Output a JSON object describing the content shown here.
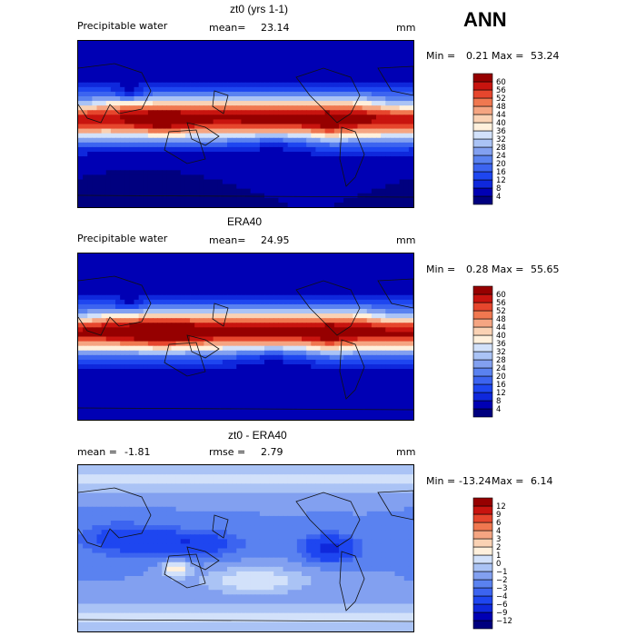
{
  "season": "ANN",
  "chart_data": [
    {
      "type": "heatmap",
      "title": "zt0 (yrs 1-1)",
      "field": "Precipitable water",
      "units": "mm",
      "mean_label": "mean=",
      "mean": "23.14",
      "min_label": "Min =",
      "min": "0.21",
      "max_label": "Max =",
      "max": "53.24",
      "levels": [
        "4",
        "8",
        "12",
        "16",
        "20",
        "24",
        "28",
        "32",
        "36",
        "40",
        "44",
        "48",
        "52",
        "56",
        "60"
      ],
      "colors": [
        "#00007f",
        "#0000b4",
        "#0f28dc",
        "#1e46f0",
        "#3c64f0",
        "#5a82f0",
        "#82a0f0",
        "#aac3f5",
        "#d2e1fa",
        "#fff0dc",
        "#fad2b4",
        "#f5a582",
        "#f07850",
        "#e6462d",
        "#c8140f",
        "#960000"
      ],
      "pattern": "model"
    },
    {
      "type": "heatmap",
      "title": "ERA40",
      "field": "Precipitable water",
      "units": "mm",
      "mean_label": "mean=",
      "mean": "24.95",
      "min_label": "Min =",
      "min": "0.28",
      "max_label": "Max =",
      "max": "55.65",
      "levels": [
        "4",
        "8",
        "12",
        "16",
        "20",
        "24",
        "28",
        "32",
        "36",
        "40",
        "44",
        "48",
        "52",
        "56",
        "60"
      ],
      "colors": [
        "#00007f",
        "#0000b4",
        "#0f28dc",
        "#1e46f0",
        "#3c64f0",
        "#5a82f0",
        "#82a0f0",
        "#aac3f5",
        "#d2e1fa",
        "#fff0dc",
        "#fad2b4",
        "#f5a582",
        "#f07850",
        "#e6462d",
        "#c8140f",
        "#960000"
      ],
      "pattern": "obs"
    },
    {
      "type": "heatmap",
      "title": "zt0 - ERA40",
      "field": "",
      "units": "mm",
      "mean_label": "mean =",
      "mean": "-1.81",
      "rmse_label": "rmse =",
      "rmse": "2.79",
      "min_label": "Min =",
      "min": "-13.24",
      "max_label": "Max =",
      "max": "6.14",
      "levels": [
        "−12",
        "−9",
        "−6",
        "−4",
        "−3",
        "−2",
        "−1",
        "0",
        "1",
        "2",
        "3",
        "4",
        "6",
        "9",
        "12"
      ],
      "colors": [
        "#00007f",
        "#0000b4",
        "#0f28dc",
        "#1e46f0",
        "#3c64f0",
        "#5a82f0",
        "#82a0f0",
        "#aac3f5",
        "#d2e1fa",
        "#fff0dc",
        "#fad2b4",
        "#f5a582",
        "#f07850",
        "#e6462d",
        "#c8140f",
        "#960000"
      ],
      "pattern": "diff"
    }
  ]
}
